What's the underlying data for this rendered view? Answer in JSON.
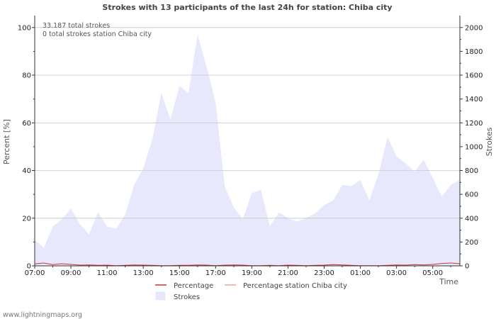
{
  "chart_data": {
    "type": "area",
    "title": "Strokes with 13 participants of the last 24h for station: Chiba city",
    "annotations": [
      "33.187 total strokes",
      "0 total strokes station Chiba city"
    ],
    "xlabel": "Time",
    "ylabel_left": "Percent   [%]",
    "ylabel_right": "Strokes",
    "x_ticks": [
      "07:00",
      "09:00",
      "11:00",
      "13:00",
      "15:00",
      "17:00",
      "19:00",
      "21:00",
      "23:00",
      "01:00",
      "03:00",
      "05:00"
    ],
    "x_hours_range": [
      0,
      23.5
    ],
    "left_axis": {
      "ticks": [
        0,
        20,
        40,
        60,
        80,
        100
      ],
      "ylim": [
        0,
        105
      ]
    },
    "right_axis": {
      "ticks": [
        0,
        200,
        400,
        600,
        800,
        1000,
        1200,
        1400,
        1600,
        1800,
        2000
      ],
      "ylim": [
        0,
        2100
      ]
    },
    "grid": true,
    "legend": [
      {
        "name": "Percentage",
        "color": "#d03030"
      },
      {
        "name": "Percentage station Chiba city",
        "color": "#f0a0a0"
      },
      {
        "name": "Strokes",
        "color": "#e8e8fc"
      }
    ],
    "strokes_series": {
      "name": "Strokes",
      "interval_hours": 0.5,
      "values": [
        220,
        150,
        330,
        390,
        480,
        350,
        265,
        450,
        330,
        310,
        430,
        680,
        820,
        1060,
        1450,
        1230,
        1510,
        1450,
        1940,
        1670,
        1370,
        670,
        490,
        390,
        610,
        640,
        330,
        450,
        400,
        370,
        400,
        440,
        510,
        550,
        680,
        670,
        720,
        550,
        770,
        1080,
        920,
        860,
        790,
        890,
        740,
        580,
        680,
        720
      ]
    },
    "percentage_series": {
      "name": "Percentage",
      "interval_hours": 0.5,
      "values": [
        0.8,
        1.2,
        0.5,
        0.9,
        0.6,
        0.3,
        0.4,
        0.2,
        0.3,
        0.1,
        0.2,
        0.4,
        0.3,
        0.2,
        0.1,
        0.1,
        0.2,
        0.2,
        0.4,
        0.3,
        0.1,
        0.3,
        0.4,
        0.3,
        0.1,
        0.1,
        0.2,
        0.1,
        0.3,
        0.2,
        0.1,
        0.2,
        0.3,
        0.5,
        0.4,
        0.2,
        0.1,
        0.1,
        0.1,
        0.2,
        0.4,
        0.3,
        0.5,
        0.4,
        0.6,
        1.0,
        1.2,
        0.9
      ]
    },
    "station_series": {
      "name": "Percentage station Chiba city",
      "interval_hours": 0.5,
      "values": [
        0,
        0,
        0,
        0,
        0,
        0,
        0,
        0,
        0,
        0,
        0,
        0,
        0,
        0,
        0,
        0,
        0,
        0,
        0,
        0,
        0,
        0,
        0,
        0,
        0,
        0,
        0,
        0,
        0,
        0,
        0,
        0,
        0,
        0,
        0,
        0,
        0,
        0,
        0,
        0,
        0,
        0,
        0,
        0,
        0,
        0,
        0,
        0
      ]
    }
  },
  "footer": "www.lightningmaps.org"
}
